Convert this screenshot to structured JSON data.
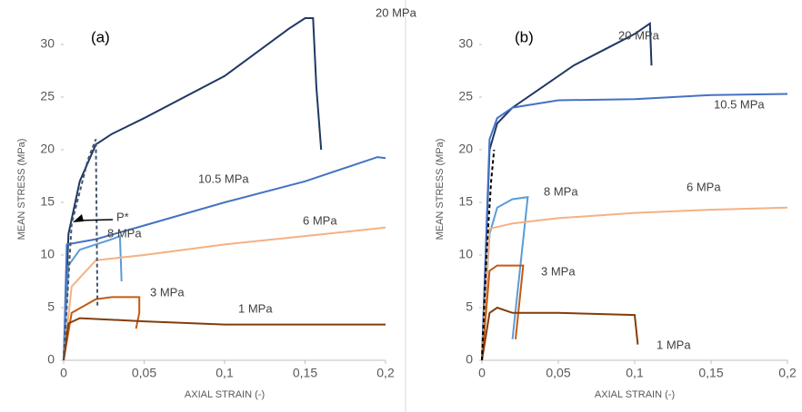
{
  "chart_data": [
    {
      "type": "line",
      "panel_label": "(a)",
      "x_label": "AXIAL STRAIN (-)",
      "y_label": "MEAN STRESS (MPa)",
      "xlim": [
        0,
        0.2
      ],
      "xticks": [
        0,
        {
          "value": 0.05,
          "label": "0,05"
        },
        {
          "value": 0.1,
          "label": "0,1"
        },
        {
          "value": 0.15,
          "label": "0,15"
        },
        {
          "value": 0.2,
          "label": "0,2"
        }
      ],
      "ylim": [
        0,
        32.5
      ],
      "yticks": [
        0,
        5,
        10,
        15,
        20,
        25,
        30
      ],
      "annotation": "P*",
      "series": [
        {
          "name": "20 MPa",
          "color": "#1f3864",
          "x": [
            0,
            0.003,
            0.01,
            0.02,
            0.03,
            0.05,
            0.1,
            0.14,
            0.15,
            0.155,
            0.157,
            0.16
          ],
          "values": [
            0,
            12,
            17,
            20.5,
            21.5,
            23,
            27,
            31.5,
            32.5,
            32.5,
            26,
            20
          ]
        },
        {
          "name": "10.5 MPa",
          "color": "#4472c4",
          "x": [
            0,
            0.002,
            0.02,
            0.05,
            0.1,
            0.15,
            0.195,
            0.2
          ],
          "values": [
            0,
            11,
            11.5,
            12.8,
            15,
            17,
            19.3,
            19.2
          ]
        },
        {
          "name": "8 MPa",
          "color": "#5b9bd5",
          "x": [
            0,
            0.003,
            0.01,
            0.03,
            0.035,
            0.036
          ],
          "values": [
            0,
            9,
            10.5,
            11.5,
            11.8,
            7.5
          ]
        },
        {
          "name": "6 MPa",
          "color": "#f4b183",
          "x": [
            0,
            0.005,
            0.02,
            0.05,
            0.1,
            0.15,
            0.2
          ],
          "values": [
            0,
            7,
            9.5,
            10,
            11,
            11.8,
            12.6
          ]
        },
        {
          "name": "3 MPa",
          "color": "#c55a11",
          "x": [
            0,
            0.005,
            0.02,
            0.03,
            0.047,
            0.047,
            0.045
          ],
          "values": [
            0,
            4.5,
            5.8,
            6,
            6,
            4.5,
            3
          ]
        },
        {
          "name": "1 MPa",
          "color": "#843c0c",
          "x": [
            0,
            0.003,
            0.01,
            0.05,
            0.1,
            0.2
          ],
          "values": [
            0,
            3.5,
            4,
            3.7,
            3.4,
            3.4
          ]
        },
        {
          "color": "#44546a",
          "dashed": true,
          "x": [
            0,
            0.005,
            0.01,
            0.015,
            0.02,
            0.021
          ],
          "values": [
            0,
            13,
            16,
            19,
            21,
            5
          ]
        }
      ]
    },
    {
      "type": "line",
      "panel_label": "(b)",
      "x_label": "AXIAL STRAIN (-)",
      "y_label": "MEAN STRESS (MPa)",
      "xlim": [
        0,
        0.2
      ],
      "xticks": [
        0,
        {
          "value": 0.05,
          "label": "0,05"
        },
        {
          "value": 0.1,
          "label": "0,1"
        },
        {
          "value": 0.15,
          "label": "0,15"
        },
        {
          "value": 0.2,
          "label": "0,2"
        }
      ],
      "ylim": [
        0,
        32.5
      ],
      "yticks": [
        0,
        5,
        10,
        15,
        20,
        25,
        30
      ],
      "series": [
        {
          "name": "20 MPa",
          "color": "#1f3864",
          "x": [
            0,
            0.005,
            0.01,
            0.02,
            0.04,
            0.06,
            0.08,
            0.1,
            0.11,
            0.111
          ],
          "values": [
            0,
            20,
            22.5,
            24,
            26,
            28,
            29.5,
            31,
            32,
            28
          ]
        },
        {
          "name": "10.5 MPa",
          "color": "#4472c4",
          "x": [
            0,
            0.005,
            0.01,
            0.02,
            0.05,
            0.1,
            0.15,
            0.2
          ],
          "values": [
            0,
            21,
            23,
            24,
            24.7,
            24.8,
            25.2,
            25.3
          ]
        },
        {
          "name": "8 MPa",
          "color": "#5b9bd5",
          "x": [
            0,
            0.005,
            0.01,
            0.02,
            0.03,
            0.02
          ],
          "values": [
            0,
            12,
            14.5,
            15.3,
            15.5,
            2
          ]
        },
        {
          "name": "6 MPa",
          "color": "#f4b183",
          "x": [
            0,
            0.005,
            0.02,
            0.05,
            0.1,
            0.15,
            0.2
          ],
          "values": [
            0,
            12.5,
            13,
            13.5,
            14,
            14.3,
            14.5
          ]
        },
        {
          "name": "3 MPa",
          "color": "#c55a11",
          "x": [
            0,
            0.005,
            0.01,
            0.02,
            0.027,
            0.022
          ],
          "values": [
            0,
            8.5,
            9,
            9,
            9,
            2
          ]
        },
        {
          "name": "1 MPa",
          "color": "#843c0c",
          "x": [
            0,
            0.005,
            0.01,
            0.02,
            0.05,
            0.1,
            0.102
          ],
          "values": [
            0,
            4.5,
            5,
            4.5,
            4.5,
            4.3,
            1.5
          ]
        },
        {
          "color": "#000000",
          "dashed": true,
          "x": [
            0,
            0.003,
            0.006,
            0.008
          ],
          "values": [
            0,
            10,
            17,
            20
          ]
        }
      ]
    }
  ]
}
